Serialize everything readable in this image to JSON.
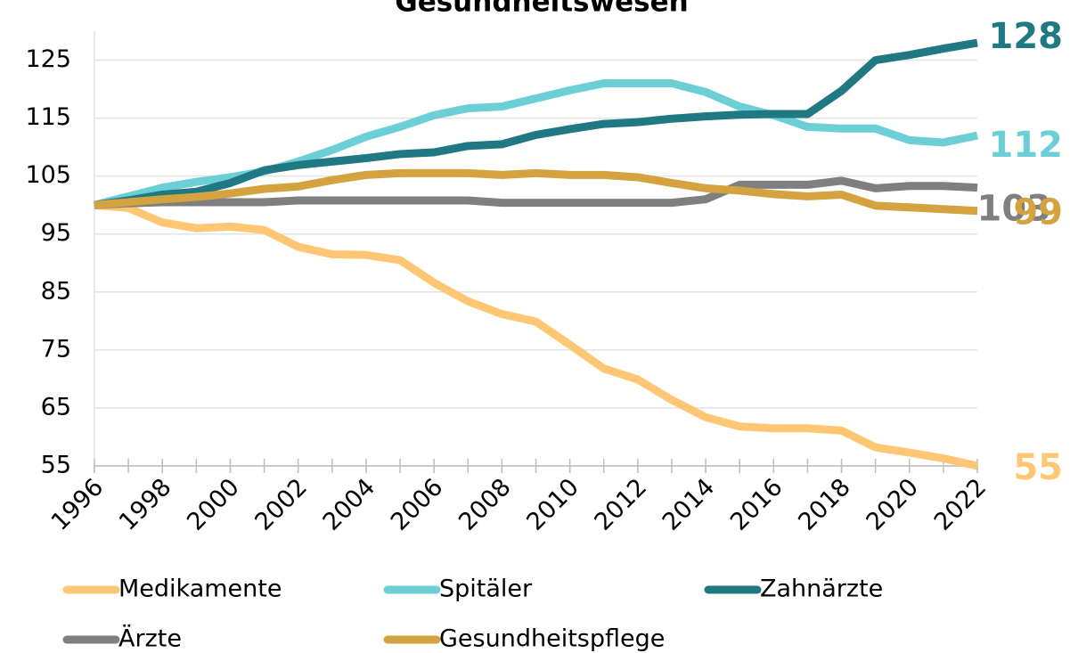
{
  "chart_data": {
    "type": "line",
    "title": "Gesundheitswesen",
    "x": [
      1996,
      1997,
      1998,
      1999,
      2000,
      2001,
      2002,
      2003,
      2004,
      2005,
      2006,
      2007,
      2008,
      2009,
      2010,
      2011,
      2012,
      2013,
      2014,
      2015,
      2016,
      2017,
      2018,
      2019,
      2020,
      2021,
      2022
    ],
    "xlim": [
      1996,
      2022
    ],
    "xticks": [
      1996,
      1998,
      2000,
      2002,
      2004,
      2006,
      2008,
      2010,
      2012,
      2014,
      2016,
      2018,
      2020,
      2022
    ],
    "ylim": [
      55,
      130
    ],
    "yticks": [
      55,
      65,
      75,
      85,
      95,
      105,
      115,
      125
    ],
    "grid": true,
    "series": [
      {
        "name": "Medikamente",
        "color": "#ffc774",
        "values": [
          100,
          99.5,
          97,
          96,
          96.3,
          95.7,
          92.8,
          91.5,
          91.4,
          90.5,
          86.6,
          83.4,
          81.2,
          79.9,
          75.9,
          71.8,
          69.9,
          66.4,
          63.4,
          61.8,
          61.5,
          61.5,
          61.1,
          58.2,
          57.3,
          56.3,
          55
        ]
      },
      {
        "name": "Spitäler",
        "color": "#6ccfd6",
        "values": [
          100,
          101.5,
          103,
          104,
          104.8,
          105.8,
          107.5,
          109.5,
          111.8,
          113.5,
          115.5,
          116.7,
          117,
          118.4,
          119.8,
          121,
          121,
          121,
          119.5,
          117,
          115.5,
          113.5,
          113.2,
          113.2,
          111.2,
          110.8,
          112
        ]
      },
      {
        "name": "Zahnärzte",
        "color": "#1f7882",
        "values": [
          100,
          100.8,
          101.8,
          102.3,
          103.8,
          106,
          106.9,
          107.5,
          108.1,
          108.8,
          109.1,
          110.2,
          110.5,
          112.1,
          113.1,
          114,
          114.3,
          114.9,
          115.3,
          115.6,
          115.7,
          115.7,
          119.7,
          125,
          125.9,
          127,
          128
        ]
      },
      {
        "name": "Ärzte",
        "color": "#7f7f7f",
        "values": [
          100,
          100.3,
          100.5,
          100.5,
          100.5,
          100.5,
          100.8,
          100.8,
          100.8,
          100.8,
          100.8,
          100.8,
          100.4,
          100.4,
          100.4,
          100.4,
          100.4,
          100.4,
          101,
          103.5,
          103.5,
          103.5,
          104.2,
          102.9,
          103.3,
          103.3,
          103
        ]
      },
      {
        "name": "Gesundheitspflege",
        "color": "#d4a23e",
        "values": [
          100,
          100.5,
          101,
          101.4,
          102,
          102.8,
          103.2,
          104.3,
          105.2,
          105.5,
          105.5,
          105.5,
          105.2,
          105.5,
          105.2,
          105.2,
          104.8,
          103.8,
          102.9,
          102.5,
          101.9,
          101.5,
          101.8,
          99.9,
          99.6,
          99.3,
          99
        ]
      }
    ]
  }
}
